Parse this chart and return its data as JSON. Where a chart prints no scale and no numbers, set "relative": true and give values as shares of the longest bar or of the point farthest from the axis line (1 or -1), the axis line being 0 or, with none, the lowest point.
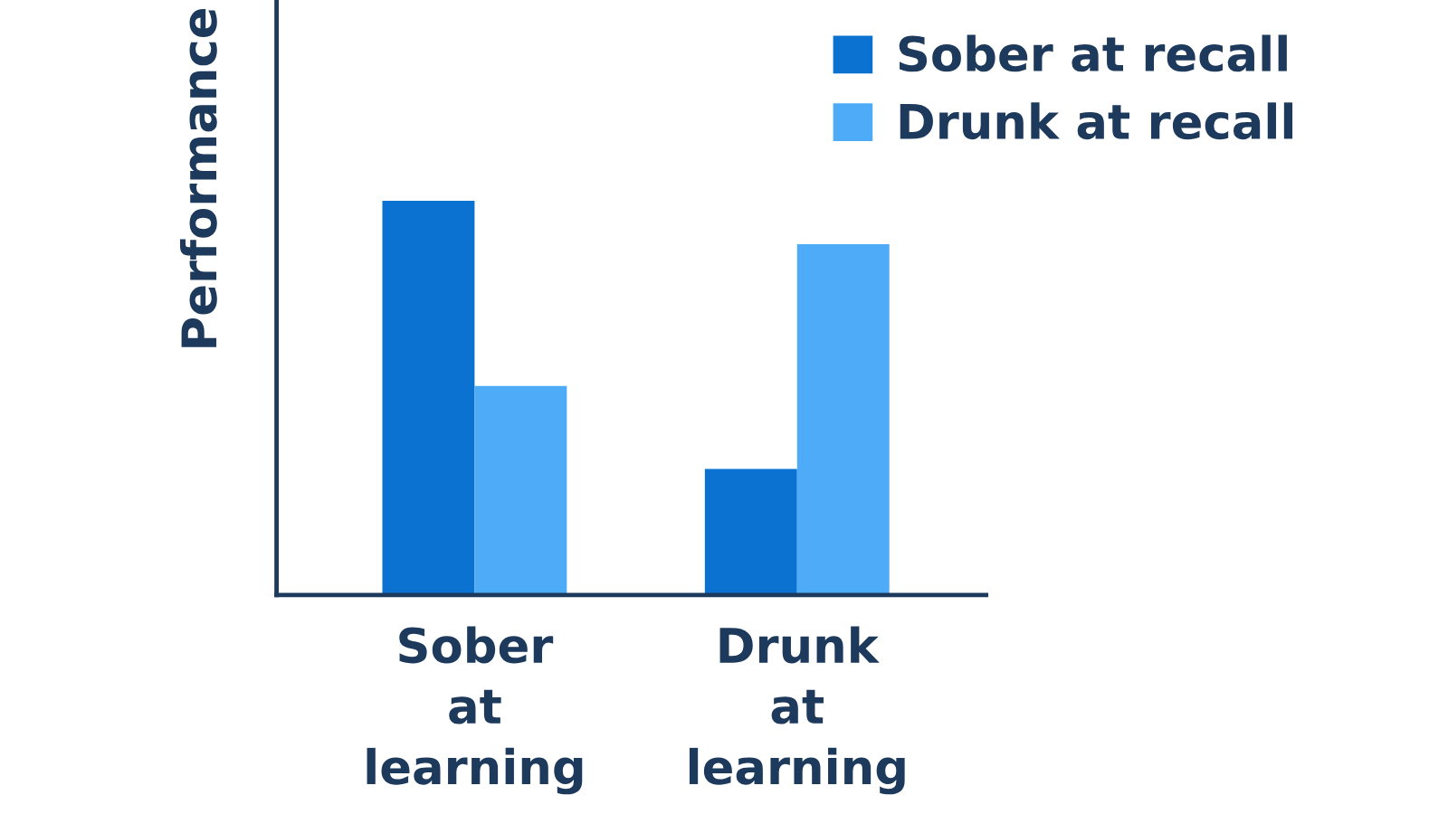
{
  "chart_data": {
    "type": "bar",
    "ylabel": "Performance",
    "relative": true,
    "categories": [
      "Sober at learning",
      "Drunk at learning"
    ],
    "series": [
      {
        "name": "Sober at recall",
        "color": "#0b72d2",
        "values": [
          1,
          0.32
        ]
      },
      {
        "name": "Drunk at recall",
        "color": "#4dabf7",
        "values": [
          0.53,
          0.89
        ]
      }
    ],
    "legend": "top right"
  }
}
